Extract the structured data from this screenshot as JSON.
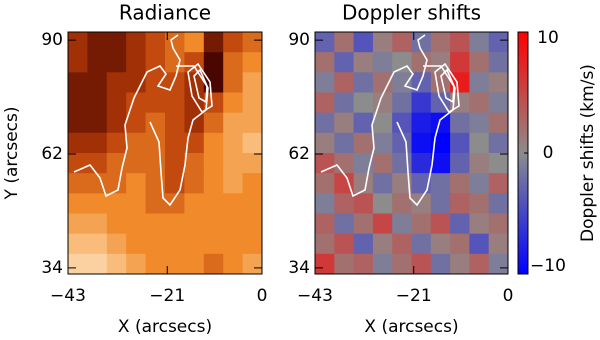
{
  "chart_data": [
    {
      "type": "heatmap",
      "title": "Radiance",
      "xlabel": "X (arcsecs)",
      "ylabel": "Y (arcsecs)",
      "xlim": [
        -43,
        0
      ],
      "ylim": [
        32.5,
        92
      ],
      "xticks": [
        {
          "value": -43,
          "label": "−43"
        },
        {
          "value": -21,
          "label": "−21"
        },
        0
      ],
      "yticks": [
        34,
        62,
        90
      ],
      "colormap": [
        "#4a0600",
        "#b83a08",
        "#f08a2a",
        "#fbc88e",
        "#fff6ec"
      ],
      "zlim": [
        0,
        10
      ],
      "z": [
        [
          2,
          1,
          1,
          2,
          3,
          4,
          5,
          1,
          3,
          4
        ],
        [
          2,
          1,
          1,
          2,
          3,
          4,
          3,
          0,
          4,
          5
        ],
        [
          1,
          1,
          2,
          2,
          3,
          3,
          2,
          0,
          4,
          6
        ],
        [
          1,
          1,
          2,
          3,
          3,
          3,
          2,
          3,
          5,
          6
        ],
        [
          1,
          1,
          2,
          3,
          4,
          3,
          2,
          4,
          6,
          6
        ],
        [
          2,
          2,
          3,
          4,
          4,
          3,
          3,
          5,
          6,
          7
        ],
        [
          3,
          3,
          4,
          4,
          4,
          3,
          4,
          5,
          6,
          6
        ],
        [
          4,
          4,
          4,
          5,
          4,
          3,
          4,
          5,
          6,
          5
        ],
        [
          5,
          5,
          5,
          5,
          4,
          4,
          5,
          5,
          5,
          5
        ],
        [
          6,
          6,
          5,
          5,
          5,
          5,
          5,
          5,
          5,
          5
        ],
        [
          7,
          7,
          6,
          5,
          5,
          5,
          5,
          5,
          5,
          5
        ],
        [
          8,
          8,
          7,
          6,
          5,
          5,
          5,
          4,
          5,
          6
        ]
      ]
    },
    {
      "type": "heatmap",
      "title": "Doppler shifts",
      "xlabel": "X (arcsecs)",
      "xlim": [
        -43,
        0
      ],
      "ylim": [
        32.5,
        92
      ],
      "xticks": [
        {
          "value": -43,
          "label": "−43"
        },
        {
          "value": -21,
          "label": "−21"
        },
        0
      ],
      "yticks": [
        34,
        62,
        90
      ],
      "colormap": [
        "#0000ff",
        "#8c8c8c",
        "#ff0000"
      ],
      "zlim": [
        -10,
        10
      ],
      "colorbar_label": "Doppler shifts (km/s)",
      "colorbar_ticks": [
        10,
        0,
        {
          "value": -10,
          "label": "−10"
        }
      ],
      "z": [
        [
          -3,
          2,
          -4,
          1,
          3,
          -2,
          2,
          4,
          -1,
          -3
        ],
        [
          2,
          -3,
          1,
          -1,
          0,
          2,
          1,
          6,
          2,
          -2
        ],
        [
          -1,
          3,
          -2,
          2,
          -1,
          -3,
          2,
          8,
          -1,
          1
        ],
        [
          3,
          -2,
          0,
          1,
          -2,
          -6,
          -3,
          1,
          2,
          -1
        ],
        [
          -2,
          1,
          -3,
          0,
          -4,
          -8,
          -9,
          -2,
          -1,
          2
        ],
        [
          1,
          -2,
          2,
          -1,
          -3,
          -9,
          -10,
          -4,
          0,
          -2
        ],
        [
          4,
          2,
          -1,
          2,
          -2,
          -7,
          -9,
          -3,
          1,
          0
        ],
        [
          2,
          5,
          1,
          -2,
          1,
          -3,
          -2,
          2,
          -1,
          3
        ],
        [
          -1,
          3,
          4,
          0,
          2,
          1,
          -2,
          3,
          2,
          -2
        ],
        [
          3,
          -2,
          2,
          5,
          -1,
          2,
          4,
          -3,
          1,
          2
        ],
        [
          2,
          4,
          -3,
          1,
          3,
          -2,
          1,
          2,
          -4,
          1
        ],
        [
          6,
          2,
          3,
          -1,
          2,
          4,
          -2,
          1,
          3,
          -1
        ]
      ]
    }
  ]
}
